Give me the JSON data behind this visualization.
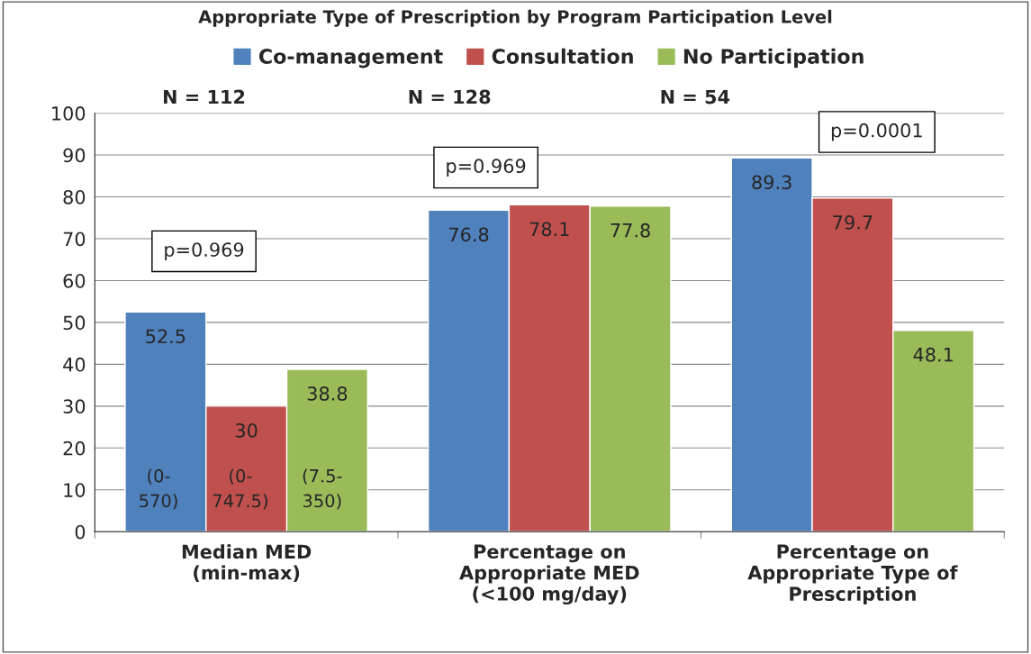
{
  "chart_data": {
    "type": "bar",
    "title": "Appropriate Type of Prescription by Program Participation Level",
    "categories": [
      "Median MED\n(min-max)",
      "Percentage on\nAppropriate MED\n(<100 mg/day)",
      "Percentage on\nAppropriate Type of\nPrescription"
    ],
    "series": [
      {
        "name": "Co-management",
        "color": "#4f81bd",
        "values": [
          52.5,
          76.8,
          89.3
        ]
      },
      {
        "name": "Consultation",
        "color": "#c0504d",
        "values": [
          30,
          78.1,
          79.7
        ]
      },
      {
        "name": "No Participation",
        "color": "#9bbb59",
        "values": [
          38.8,
          77.8,
          48.1
        ]
      }
    ],
    "ylim": [
      0,
      100
    ],
    "yticks": [
      0,
      10,
      20,
      30,
      40,
      50,
      60,
      70,
      80,
      90,
      100
    ],
    "grid": "y",
    "legend": "top",
    "data_labels": true,
    "annotations": [
      "N = 112",
      "N = 128",
      "N = 54",
      "p=0.969",
      "p=0.969",
      "p=0.0001",
      "(0-\n570)",
      "(0-\n747.5)",
      "(7.5-\n350)"
    ]
  }
}
